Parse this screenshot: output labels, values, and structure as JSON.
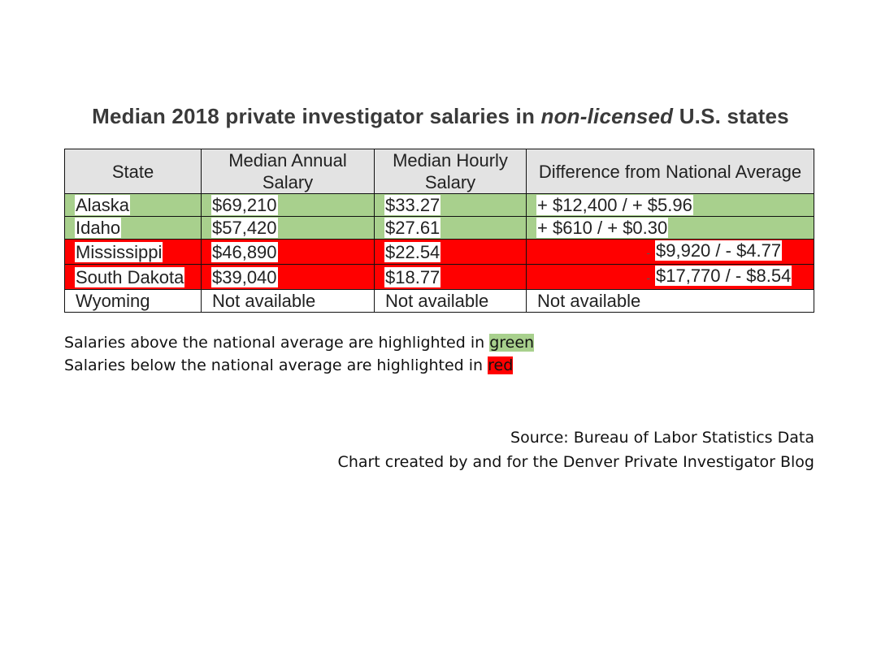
{
  "title": {
    "prefix": "Median 2018 private investigator salaries in ",
    "emphasis": "non-licensed",
    "suffix": " U.S. states"
  },
  "table": {
    "headers": [
      "State",
      "Median Annual Salary",
      "Median Hourly Salary",
      "Difference from National Average"
    ],
    "rows": [
      {
        "state": "Alaska",
        "annual": "$69,210",
        "hourly": "$33.27",
        "difference": "+ $12,400 / + $5.96",
        "highlight": "green"
      },
      {
        "state": "Idaho",
        "annual": "$57,420",
        "hourly": "$27.61",
        "difference": "+ $610 / + $0.30",
        "highlight": "green"
      },
      {
        "state": "Mississippi",
        "annual": "$46,890",
        "hourly": "$22.54",
        "difference": "$9,920 / - $4.77",
        "highlight": "red"
      },
      {
        "state": "South Dakota",
        "annual": "$39,040",
        "hourly": "$18.77",
        "difference": "$17,770 / - $8.54",
        "highlight": "red"
      },
      {
        "state": "Wyoming",
        "annual": "Not available",
        "hourly": "Not available",
        "difference": "Not available",
        "highlight": "none"
      }
    ]
  },
  "legend": {
    "line1_prefix": "Salaries above the national average are highlighted in ",
    "line1_color_word": "green",
    "line2_prefix": "Salaries below the national average are highlighted in ",
    "line2_color_word": "red"
  },
  "source": {
    "line1": "Source: Bureau of Labor Statistics Data",
    "line2": "Chart created by and for the Denver Private Investigator Blog"
  },
  "colors": {
    "green": "#a8d08d",
    "red": "#ff0000",
    "header_bg": "#e3e3e3"
  }
}
